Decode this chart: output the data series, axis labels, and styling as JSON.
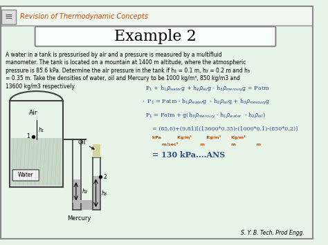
{
  "title": "Example 2",
  "header": "Revision of Thermodynamic Concepts",
  "footer": "S. Y. B. Tech. Prod Engg.",
  "bg_color": "#f5f5dc",
  "header_bg": "#ffffff",
  "slide_bg": "#e8f4e8",
  "problem_text": "A water in a tank is pressurised by air and a pressure is measured by a multifluid\nmanometer. The tank is located on a mountain at 1400 m altitude, where the atmospheric\npressure is 85.6 kPa. Determine the air pressure in the tank if h₁ = 0.1 m, h₂ = 0.2 m and h₃\n= 0.35 m. Take the densities of water, oil and Mercury to be 1000 kg/m³, 850 kg/m3 and\n13600 kg/m3 respectively.",
  "eq1": "P₁ + h₁ρ$_{water}$g + h₂ρ$_{oil}$g - h₃ρ$_{mercury}$g = Patm",
  "eq2": "P₁ = Patm - h₁ρ$_{water}$g  - h₂ρ$_{oil}$g + h₃ρ$_{mercury}$g",
  "eq3": "P₁ = Patm + g(h₃ρ$_{mercury}$ - h₁ρ$_{water}$  - h₂ρ$_{oil}$)",
  "eq4": "= (85.6)+(9.81)[(13600*0.35)-(1000*0.1)-(850*0.2)]",
  "eq5": "= 130 kPa....ANS",
  "units_line1": "kPa           Kg/m³          Kg/m³       Kg/m³",
  "units_line2": "       m/sec²               m                  m              m",
  "water_color": "#c8d8c8",
  "mercury_color": "#b0b0b0",
  "oil_color": "#d4d4a0",
  "tank_line_color": "#404040",
  "text_color": "#000000",
  "eq_color": "#2a4a8a",
  "highlight_color": "#cc4400"
}
